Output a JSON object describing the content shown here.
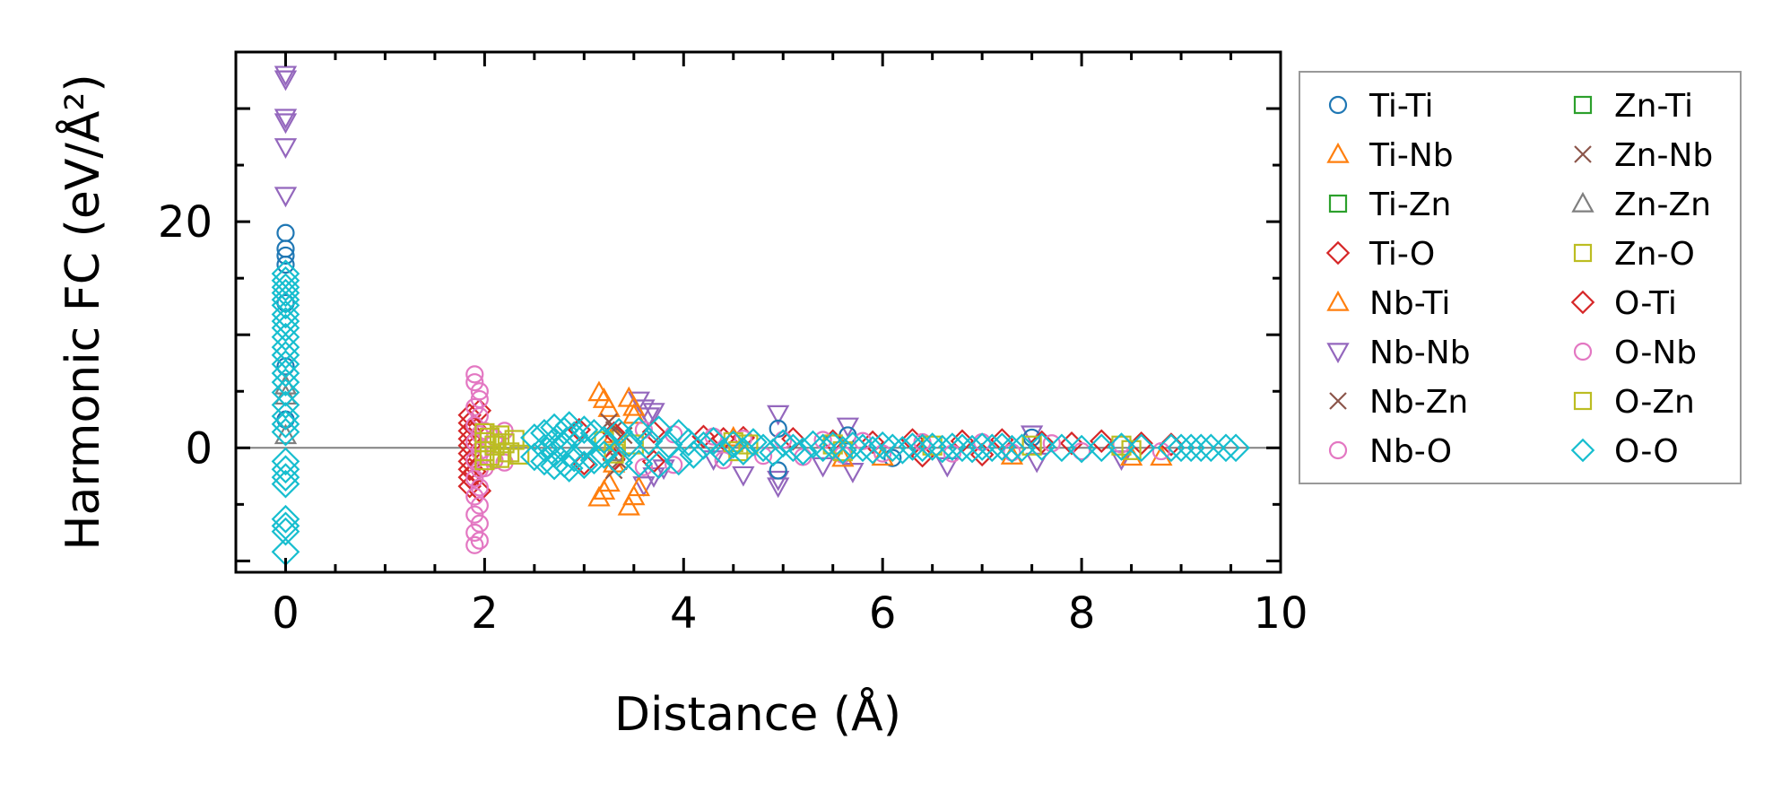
{
  "chart_data": {
    "type": "scatter",
    "title": "",
    "xlabel": "Distance (Å)",
    "ylabel": "Harmonic FC (eV/Å²)",
    "xlim": [
      -0.5,
      10
    ],
    "ylim": [
      -11,
      35
    ],
    "xticks": [
      0,
      2,
      4,
      6,
      8,
      10
    ],
    "yticks": [
      0,
      20
    ],
    "grid": false,
    "zero_line": true,
    "legend_position": "outside-right",
    "legend": [
      {
        "name": "Ti-Ti",
        "marker": "circle",
        "color": "#1f77b4"
      },
      {
        "name": "Ti-Nb",
        "marker": "triangle-up",
        "color": "#ff7f0e"
      },
      {
        "name": "Ti-Zn",
        "marker": "square",
        "color": "#2ca02c"
      },
      {
        "name": "Ti-O",
        "marker": "diamond",
        "color": "#d62728"
      },
      {
        "name": "Nb-Ti",
        "marker": "triangle-up",
        "color": "#ff7f0e"
      },
      {
        "name": "Nb-Nb",
        "marker": "triangle-down",
        "color": "#9467bd"
      },
      {
        "name": "Nb-Zn",
        "marker": "x",
        "color": "#8c564b"
      },
      {
        "name": "Nb-O",
        "marker": "circle",
        "color": "#e377c2"
      },
      {
        "name": "Zn-Ti",
        "marker": "square",
        "color": "#2ca02c"
      },
      {
        "name": "Zn-Nb",
        "marker": "x",
        "color": "#8c564b"
      },
      {
        "name": "Zn-Zn",
        "marker": "triangle-up",
        "color": "#7f7f7f"
      },
      {
        "name": "Zn-O",
        "marker": "square",
        "color": "#bcbd22"
      },
      {
        "name": "O-Ti",
        "marker": "diamond",
        "color": "#d62728"
      },
      {
        "name": "O-Nb",
        "marker": "circle",
        "color": "#e377c2"
      },
      {
        "name": "O-Zn",
        "marker": "square",
        "color": "#bcbd22"
      },
      {
        "name": "O-O",
        "marker": "diamond",
        "color": "#17becf"
      }
    ],
    "series": [
      {
        "name": "Nb-Nb",
        "points": [
          [
            0,
            33
          ],
          [
            0,
            32.6
          ],
          [
            0,
            29.2
          ],
          [
            0,
            28.8
          ],
          [
            0,
            26.6
          ],
          [
            0,
            22.3
          ],
          [
            3.55,
            4.2
          ],
          [
            3.6,
            3.5
          ],
          [
            3.65,
            2.8
          ],
          [
            3.7,
            3.2
          ],
          [
            3.6,
            -3.3
          ],
          [
            3.7,
            -2.5
          ],
          [
            3.8,
            -1.8
          ],
          [
            4.3,
            -1.0
          ],
          [
            4.6,
            -2.4
          ],
          [
            4.95,
            3.0
          ],
          [
            4.95,
            -2.8
          ],
          [
            4.95,
            -3.4
          ],
          [
            5.4,
            -1.6
          ],
          [
            5.65,
            1.9
          ],
          [
            5.7,
            -2.1
          ],
          [
            6.65,
            -1.6
          ],
          [
            7.5,
            1.2
          ],
          [
            7.55,
            -1.2
          ],
          [
            8.4,
            -1.0
          ]
        ]
      },
      {
        "name": "Ti-Ti",
        "points": [
          [
            0,
            19.0
          ],
          [
            0,
            17.6
          ],
          [
            0,
            17.0
          ],
          [
            0,
            16.2
          ],
          [
            0,
            12.8
          ],
          [
            0,
            7.2
          ],
          [
            0,
            2.5
          ],
          [
            4.95,
            1.7
          ],
          [
            4.95,
            -2.0
          ],
          [
            5.65,
            1.1
          ],
          [
            6.1,
            -0.9
          ],
          [
            7.5,
            0.9
          ]
        ]
      },
      {
        "name": "Ti-Nb",
        "points": [
          [
            3.15,
            4.9
          ],
          [
            3.2,
            4.3
          ],
          [
            3.25,
            3.5
          ],
          [
            3.15,
            -4.4
          ],
          [
            3.2,
            -3.8
          ],
          [
            3.25,
            -3.1
          ],
          [
            3.45,
            4.4
          ],
          [
            3.5,
            3.6
          ],
          [
            3.5,
            2.9
          ],
          [
            3.45,
            -5.2
          ],
          [
            3.5,
            -4.3
          ],
          [
            3.55,
            -3.5
          ],
          [
            3.3,
            1.2
          ],
          [
            3.3,
            -1.4
          ],
          [
            4.5,
            0.9
          ],
          [
            5.6,
            -0.9
          ],
          [
            6.0,
            -0.8
          ],
          [
            7.3,
            -0.7
          ],
          [
            8.5,
            -0.8
          ],
          [
            8.8,
            -0.8
          ]
        ]
      },
      {
        "name": "Nb-Zn",
        "points": [
          [
            3.25,
            2.3
          ],
          [
            3.3,
            1.6
          ],
          [
            3.4,
            1.1
          ],
          [
            3.3,
            -2.0
          ],
          [
            3.35,
            -1.2
          ]
        ]
      },
      {
        "name": "Zn-Zn",
        "points": [
          [
            0,
            5.5
          ],
          [
            0,
            4.6
          ],
          [
            0,
            1.1
          ],
          [
            3.3,
            -0.4
          ]
        ]
      },
      {
        "name": "Ti-O",
        "points": [
          [
            1.85,
            2.9
          ],
          [
            1.85,
            2.2
          ],
          [
            1.85,
            1.5
          ],
          [
            1.85,
            0.8
          ],
          [
            1.85,
            0.2
          ],
          [
            1.85,
            -0.5
          ],
          [
            1.85,
            -1.2
          ],
          [
            1.85,
            -1.9
          ],
          [
            1.85,
            -2.6
          ],
          [
            1.85,
            -3.4
          ],
          [
            1.9,
            1.8
          ],
          [
            1.9,
            -2.1
          ],
          [
            1.95,
            3.3
          ],
          [
            1.95,
            -3.8
          ],
          [
            2.95,
            1.6
          ],
          [
            3.0,
            -1.4
          ],
          [
            3.3,
            1.3
          ],
          [
            3.3,
            -1.0
          ],
          [
            3.7,
            1.4
          ],
          [
            3.7,
            -1.2
          ],
          [
            4.2,
            1.0
          ],
          [
            4.4,
            0.8
          ],
          [
            4.6,
            0.9
          ],
          [
            5.1,
            0.8
          ],
          [
            5.5,
            0.6
          ],
          [
            5.9,
            0.5
          ],
          [
            6.3,
            0.7
          ],
          [
            6.4,
            -0.7
          ],
          [
            6.8,
            0.6
          ],
          [
            7.0,
            -0.6
          ],
          [
            7.2,
            0.7
          ],
          [
            7.6,
            0.5
          ],
          [
            7.9,
            0.4
          ],
          [
            8.2,
            0.6
          ],
          [
            8.6,
            0.4
          ],
          [
            8.9,
            0.3
          ]
        ]
      },
      {
        "name": "Nb-O",
        "points": [
          [
            1.9,
            6.5
          ],
          [
            1.9,
            5.8
          ],
          [
            1.95,
            5.0
          ],
          [
            1.95,
            4.3
          ],
          [
            1.9,
            3.6
          ],
          [
            1.95,
            2.8
          ],
          [
            1.9,
            2.0
          ],
          [
            1.95,
            1.2
          ],
          [
            1.9,
            0.5
          ],
          [
            1.95,
            -0.3
          ],
          [
            1.9,
            -1.1
          ],
          [
            1.95,
            -1.9
          ],
          [
            1.9,
            -2.7
          ],
          [
            1.95,
            -3.5
          ],
          [
            1.9,
            -4.3
          ],
          [
            1.95,
            -5.1
          ],
          [
            1.9,
            -5.9
          ],
          [
            1.95,
            -6.7
          ],
          [
            1.9,
            -7.5
          ],
          [
            1.95,
            -8.2
          ],
          [
            1.9,
            -8.6
          ],
          [
            2.0,
            1.5
          ],
          [
            2.0,
            -1.8
          ],
          [
            2.1,
            0.9
          ],
          [
            2.1,
            -1.1
          ],
          [
            2.2,
            1.5
          ],
          [
            2.2,
            -1.3
          ],
          [
            3.6,
            1.6
          ],
          [
            3.6,
            -1.7
          ],
          [
            3.9,
            1.2
          ],
          [
            3.9,
            -1.5
          ],
          [
            4.3,
            1.0
          ],
          [
            4.4,
            -1.1
          ],
          [
            4.6,
            0.8
          ],
          [
            4.8,
            -0.7
          ],
          [
            5.0,
            0.7
          ],
          [
            5.2,
            -0.8
          ],
          [
            5.4,
            0.7
          ],
          [
            5.6,
            -0.6
          ],
          [
            5.8,
            0.6
          ],
          [
            6.0,
            -0.5
          ],
          [
            6.4,
            0.5
          ],
          [
            6.7,
            -0.5
          ],
          [
            7.0,
            0.5
          ],
          [
            7.3,
            -0.4
          ],
          [
            7.7,
            0.4
          ],
          [
            8.0,
            -0.3
          ],
          [
            8.4,
            0.3
          ],
          [
            8.8,
            -0.3
          ]
        ]
      },
      {
        "name": "Zn-O",
        "points": [
          [
            2.0,
            1.3
          ],
          [
            2.0,
            0.5
          ],
          [
            2.0,
            -0.3
          ],
          [
            2.0,
            -1.1
          ],
          [
            2.05,
            0.9
          ],
          [
            2.05,
            -0.7
          ],
          [
            2.1,
            0.2
          ],
          [
            2.15,
            1.1
          ],
          [
            2.15,
            -0.9
          ],
          [
            2.2,
            0.4
          ],
          [
            2.25,
            -0.4
          ],
          [
            2.3,
            0.7
          ],
          [
            2.35,
            -0.6
          ],
          [
            3.2,
            0.6
          ],
          [
            3.3,
            -0.5
          ],
          [
            3.5,
            0.3
          ],
          [
            4.5,
            0.5
          ],
          [
            4.55,
            -0.3
          ],
          [
            4.65,
            0.3
          ],
          [
            5.5,
            0.3
          ],
          [
            5.6,
            -0.3
          ],
          [
            6.5,
            0.2
          ],
          [
            7.5,
            0.2
          ],
          [
            8.4,
            0.2
          ],
          [
            8.5,
            -0.2
          ]
        ]
      },
      {
        "name": "O-O",
        "points": [
          [
            0,
            15.4
          ],
          [
            0,
            14.8
          ],
          [
            0,
            14.2
          ],
          [
            0,
            13.7
          ],
          [
            0,
            13.1
          ],
          [
            0,
            12.6
          ],
          [
            0,
            11.8
          ],
          [
            0,
            11.2
          ],
          [
            0,
            10.6
          ],
          [
            0,
            9.8
          ],
          [
            0,
            8.9
          ],
          [
            0,
            8.2
          ],
          [
            0,
            7.4
          ],
          [
            0,
            6.6
          ],
          [
            0,
            5.8
          ],
          [
            0,
            4.9
          ],
          [
            0,
            3.8
          ],
          [
            0,
            2.8
          ],
          [
            0,
            2.1
          ],
          [
            0,
            1.4
          ],
          [
            0,
            -1.2
          ],
          [
            0,
            -1.9
          ],
          [
            0,
            -2.6
          ],
          [
            0,
            -3.2
          ],
          [
            0,
            -6.3
          ],
          [
            0,
            -6.9
          ],
          [
            0,
            -7.4
          ],
          [
            0,
            -9.2
          ],
          [
            2.5,
            0.9
          ],
          [
            2.5,
            -0.8
          ],
          [
            2.6,
            1.3
          ],
          [
            2.6,
            0
          ],
          [
            2.6,
            -1.2
          ],
          [
            2.7,
            1.8
          ],
          [
            2.7,
            0.6
          ],
          [
            2.7,
            -0.5
          ],
          [
            2.7,
            -1.6
          ],
          [
            2.8,
            1.5
          ],
          [
            2.8,
            0.2
          ],
          [
            2.8,
            -1.4
          ],
          [
            2.85,
            2.0
          ],
          [
            2.85,
            -1.8
          ],
          [
            2.9,
            1.1
          ],
          [
            2.9,
            -0.9
          ],
          [
            3.0,
            1.6
          ],
          [
            3.0,
            0.1
          ],
          [
            3.0,
            -1.5
          ],
          [
            3.1,
            1.3
          ],
          [
            3.1,
            -1.1
          ],
          [
            3.2,
            0.7
          ],
          [
            3.2,
            -0.6
          ],
          [
            3.35,
            1.4
          ],
          [
            3.35,
            -1.3
          ],
          [
            3.45,
            0.4
          ],
          [
            3.55,
            1.5
          ],
          [
            3.55,
            -1.4
          ],
          [
            3.65,
            0.6
          ],
          [
            3.75,
            1.6
          ],
          [
            3.75,
            -1.5
          ],
          [
            3.85,
            0.3
          ],
          [
            3.95,
            1.3
          ],
          [
            3.95,
            -1.2
          ],
          [
            4.05,
            0.5
          ],
          [
            4.1,
            -0.6
          ],
          [
            4.2,
            0.2
          ],
          [
            4.3,
            0.6
          ],
          [
            4.4,
            -0.4
          ],
          [
            4.5,
            0.3
          ],
          [
            4.6,
            -0.3
          ],
          [
            4.7,
            0.5
          ],
          [
            4.8,
            0
          ],
          [
            4.9,
            -0.4
          ],
          [
            5.0,
            0.4
          ],
          [
            5.1,
            0
          ],
          [
            5.2,
            -0.3
          ],
          [
            5.3,
            0.3
          ],
          [
            5.4,
            0
          ],
          [
            5.5,
            0.2
          ],
          [
            5.6,
            -0.2
          ],
          [
            5.7,
            0.2
          ],
          [
            5.8,
            0
          ],
          [
            5.9,
            -0.2
          ],
          [
            6.0,
            0.2
          ],
          [
            6.1,
            0
          ],
          [
            6.2,
            -0.2
          ],
          [
            6.3,
            0.1
          ],
          [
            6.4,
            0
          ],
          [
            6.5,
            0.1
          ],
          [
            6.6,
            -0.1
          ],
          [
            6.7,
            0.1
          ],
          [
            6.8,
            0
          ],
          [
            6.9,
            -0.1
          ],
          [
            7.0,
            0.1
          ],
          [
            7.1,
            0
          ],
          [
            7.2,
            0.1
          ],
          [
            7.3,
            -0.1
          ],
          [
            7.4,
            0
          ],
          [
            7.6,
            0.1
          ],
          [
            7.8,
            0
          ],
          [
            8.0,
            -0.1
          ],
          [
            8.2,
            0
          ],
          [
            8.4,
            0.1
          ],
          [
            8.6,
            0
          ],
          [
            8.9,
            0
          ],
          [
            9.0,
            0
          ],
          [
            9.1,
            0
          ],
          [
            9.2,
            0
          ],
          [
            9.3,
            0
          ],
          [
            9.45,
            0
          ],
          [
            9.55,
            0
          ]
        ]
      }
    ]
  }
}
